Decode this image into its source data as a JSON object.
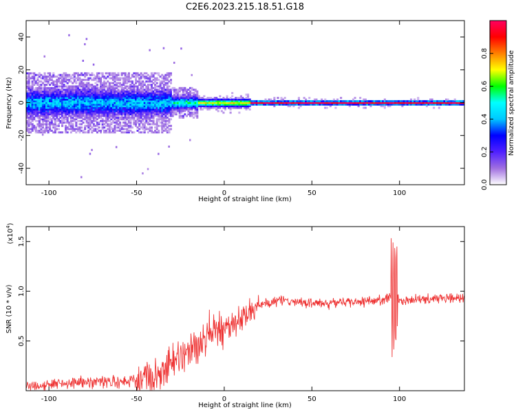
{
  "title": "C2E6.2023.215.18.51.G18",
  "chart_data": [
    {
      "type": "heatmap",
      "title": "",
      "xlabel": "Height of straight line (km)",
      "ylabel": "Frequency (Hz)",
      "xlim": [
        -113,
        137
      ],
      "ylim": [
        -50,
        50
      ],
      "xticks": [
        -100,
        -50,
        0,
        50,
        100
      ],
      "yticks": [
        -40,
        -20,
        0,
        20,
        40
      ],
      "zlim": [
        0,
        1
      ],
      "colorbar": {
        "label": "Normalized spectral amplitude",
        "ticks": [
          0.0,
          0.2,
          0.4,
          0.6,
          0.8
        ],
        "tick_labels": [
          "0.0",
          "0.2",
          "0.4",
          "0.6",
          "0.8"
        ],
        "colors": [
          "#ffffff",
          "#a070e0",
          "#5020ff",
          "#0000ff",
          "#00c8ff",
          "#00ffff",
          "#00ff00",
          "#ffff00",
          "#ff8000",
          "#ff0000",
          "#ff0060"
        ]
      },
      "bands": [
        {
          "x_start": -113,
          "x_end": -30,
          "center": 0,
          "half_width": 6,
          "peak_amplitude": 0.35
        },
        {
          "x_start": -30,
          "x_end": -15,
          "center": 0,
          "half_width": 3,
          "peak_amplitude": 0.45
        },
        {
          "x_start": -15,
          "x_end": 15,
          "center": 0,
          "half_width": 2,
          "peak_amplitude": 0.7
        },
        {
          "x_start": 15,
          "x_end": 137,
          "center": 0,
          "half_width": 1,
          "peak_amplitude": 0.95
        }
      ]
    },
    {
      "type": "line",
      "title": "",
      "xlabel": "Height of straight line (km)",
      "ylabel": "SNR (10 * v/v)",
      "y_multiplier": "(x10",
      "y_multiplier_exp": "4",
      "xlim": [
        -113,
        137
      ],
      "ylim": [
        0,
        16500
      ],
      "xticks": [
        -100,
        -50,
        0,
        50,
        100
      ],
      "yticks": [
        5000,
        10000,
        15000
      ],
      "ytick_labels": [
        "0.5",
        "1.0",
        "1.5"
      ],
      "color": "#ee3333",
      "series": [
        {
          "x": [
            -113,
            -100,
            -80,
            -60,
            -50,
            -40,
            -30,
            -20,
            -15,
            -10,
            -5,
            0,
            5,
            10,
            15,
            20,
            30,
            40,
            50,
            60,
            70,
            80,
            90,
            95,
            96,
            97,
            98,
            100,
            110,
            120,
            130,
            137
          ],
          "values": [
            400,
            700,
            900,
            900,
            1000,
            1500,
            2700,
            3800,
            4600,
            5500,
            6000,
            6100,
            6600,
            7300,
            8100,
            8700,
            9000,
            9000,
            8800,
            8800,
            8900,
            9000,
            9100,
            9400,
            9200,
            9500,
            9600,
            9100,
            9200,
            9300,
            9400,
            9400
          ]
        }
      ]
    }
  ]
}
